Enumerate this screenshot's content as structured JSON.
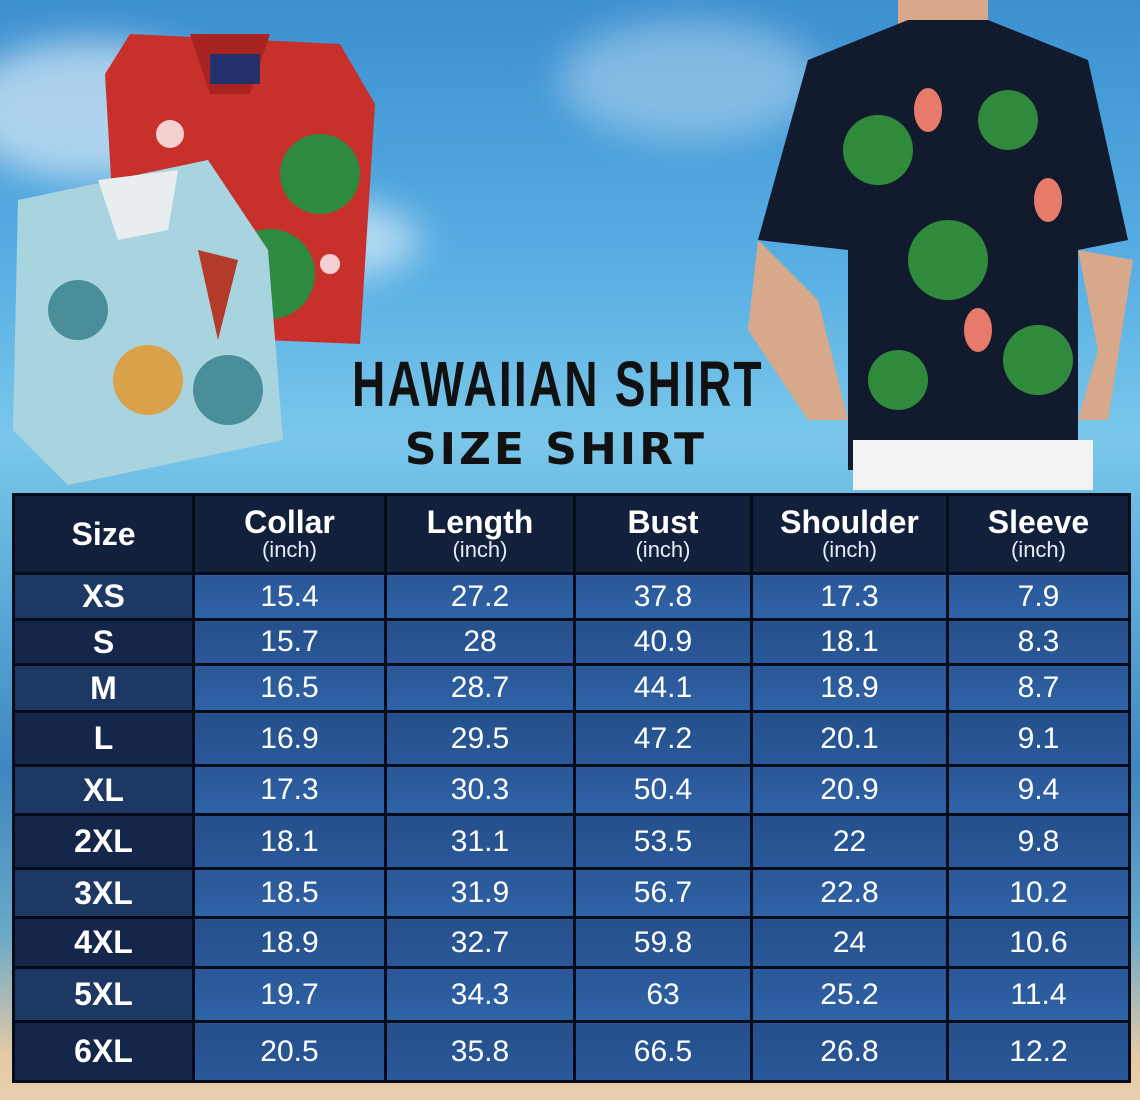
{
  "title": "HAWAIIAN SHIRT",
  "subtitle": "SIZE SHIRT",
  "colors": {
    "header_bg": "#12203c",
    "cell_bg": "#2f63a8",
    "size_col_bg": "#14264a",
    "title": "#111111"
  },
  "table": {
    "headers": [
      {
        "label": "Size",
        "unit": ""
      },
      {
        "label": "Collar",
        "unit": "(inch)"
      },
      {
        "label": "Length",
        "unit": "(inch)"
      },
      {
        "label": "Bust",
        "unit": "(inch)"
      },
      {
        "label": "Shoulder",
        "unit": "(inch)"
      },
      {
        "label": "Sleeve",
        "unit": "(inch)"
      }
    ],
    "rows": [
      [
        "XS",
        "15.4",
        "27.2",
        "37.8",
        "17.3",
        "7.9"
      ],
      [
        "S",
        "15.7",
        "28",
        "40.9",
        "18.1",
        "8.3"
      ],
      [
        "M",
        "16.5",
        "28.7",
        "44.1",
        "18.9",
        "8.7"
      ],
      [
        "L",
        "16.9",
        "29.5",
        "47.2",
        "20.1",
        "9.1"
      ],
      [
        "XL",
        "17.3",
        "30.3",
        "50.4",
        "20.9",
        "9.4"
      ],
      [
        "2XL",
        "18.1",
        "31.1",
        "53.5",
        "22",
        "9.8"
      ],
      [
        "3XL",
        "18.5",
        "31.9",
        "56.7",
        "22.8",
        "10.2"
      ],
      [
        "4XL",
        "18.9",
        "32.7",
        "59.8",
        "24",
        "10.6"
      ],
      [
        "5XL",
        "19.7",
        "34.3",
        "63",
        "25.2",
        "11.4"
      ],
      [
        "6XL",
        "20.5",
        "35.8",
        "66.5",
        "26.8",
        "12.2"
      ]
    ]
  }
}
